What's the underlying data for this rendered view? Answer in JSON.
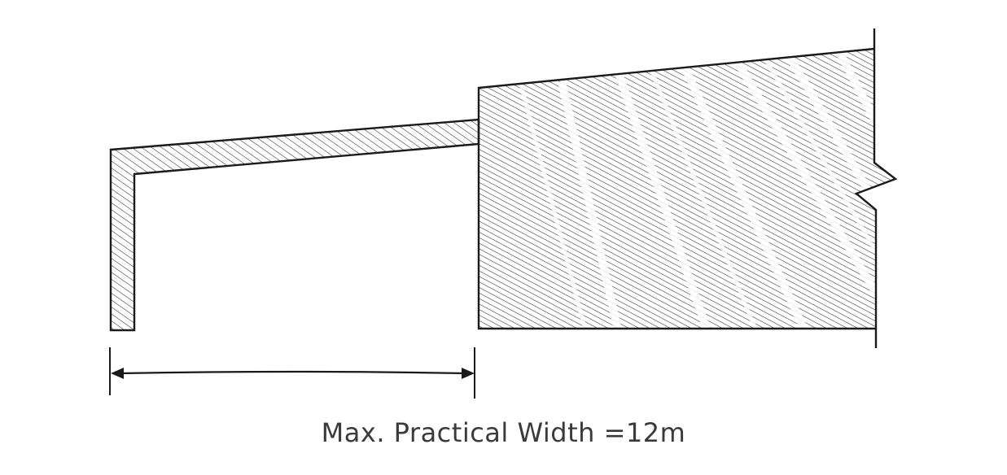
{
  "caption": "Max. Practical Width =12m",
  "colors": {
    "outline": "#1a1a1a",
    "hatch": "#2a2a2a",
    "text": "#3a3a3a",
    "background": "#ffffff"
  }
}
